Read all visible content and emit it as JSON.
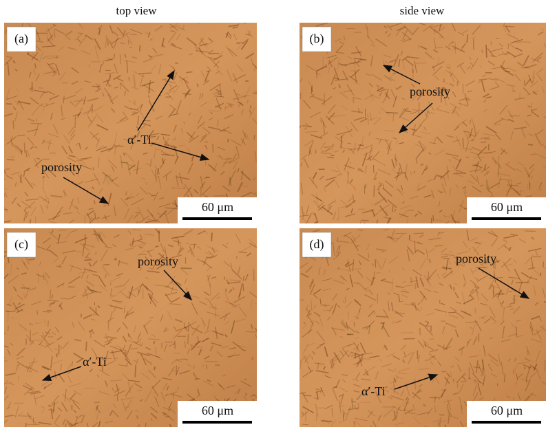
{
  "columns": [
    "top view",
    "side view"
  ],
  "panels": [
    {
      "label": "(a)",
      "annotations": [
        "α′-Ti",
        "porosity"
      ],
      "scale": "60 μm"
    },
    {
      "label": "(b)",
      "annotations": [
        "porosity"
      ],
      "scale": "60 μm"
    },
    {
      "label": "(c)",
      "annotations": [
        "porosity",
        "α′-Ti"
      ],
      "scale": "60 μm"
    },
    {
      "label": "(d)",
      "annotations": [
        "porosity",
        "α′-Ti"
      ],
      "scale": "60 μm"
    }
  ]
}
